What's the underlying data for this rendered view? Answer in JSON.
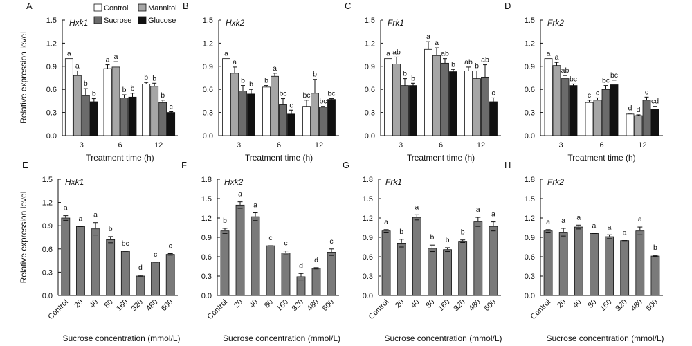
{
  "figure": {
    "legend": [
      {
        "name": "Control",
        "color": "#ffffff"
      },
      {
        "name": "Mannitol",
        "color": "#a6a6a6"
      },
      {
        "name": "Sucrose",
        "color": "#6b6b6b"
      },
      {
        "name": "Glucose",
        "color": "#111111"
      }
    ]
  },
  "chart_data": [
    {
      "panel": "A",
      "gene": "Hxk1",
      "type": "bar",
      "ylabel": "Relative expression level",
      "xlabel": "Treatment time (h)",
      "ylim": [
        0,
        1.5
      ],
      "yticks": [
        "0.0",
        "0.3",
        "0.6",
        "0.9",
        "1.2",
        "1.5"
      ],
      "categories": [
        "3",
        "6",
        "12"
      ],
      "series": [
        {
          "name": "Control",
          "values": [
            1.0,
            0.87,
            0.67
          ],
          "errors": [
            0.0,
            0.05,
            0.02
          ],
          "letters": [
            "a",
            "a",
            "b"
          ]
        },
        {
          "name": "Mannitol",
          "values": [
            0.78,
            0.89,
            0.64
          ],
          "errors": [
            0.06,
            0.07,
            0.04
          ],
          "letters": [
            "a",
            "a",
            "b"
          ]
        },
        {
          "name": "Sucrose",
          "values": [
            0.52,
            0.49,
            0.43
          ],
          "errors": [
            0.09,
            0.04,
            0.03
          ],
          "letters": [
            "b",
            "b",
            "b"
          ]
        },
        {
          "name": "Glucose",
          "values": [
            0.44,
            0.5,
            0.3
          ],
          "errors": [
            0.04,
            0.05,
            0.01
          ],
          "letters": [
            "b",
            "b",
            "c"
          ]
        }
      ]
    },
    {
      "panel": "B",
      "gene": "Hxk2",
      "type": "bar",
      "ylabel": "",
      "xlabel": "Treatment time (h)",
      "ylim": [
        0,
        1.5
      ],
      "yticks": [
        "0.0",
        "0.3",
        "0.6",
        "0.9",
        "1.2",
        "1.5"
      ],
      "categories": [
        "3",
        "6",
        "12"
      ],
      "series": [
        {
          "name": "Control",
          "values": [
            1.0,
            0.63,
            0.38
          ],
          "errors": [
            0.0,
            0.02,
            0.08
          ],
          "letters": [
            "a",
            "b",
            "bc"
          ]
        },
        {
          "name": "Mannitol",
          "values": [
            0.81,
            0.77,
            0.55
          ],
          "errors": [
            0.08,
            0.04,
            0.18
          ],
          "letters": [
            "a",
            "a",
            "b"
          ]
        },
        {
          "name": "Sucrose",
          "values": [
            0.58,
            0.4,
            0.37
          ],
          "errors": [
            0.07,
            0.08,
            0.01
          ],
          "letters": [
            "b",
            "bc",
            "bc"
          ]
        },
        {
          "name": "Glucose",
          "values": [
            0.54,
            0.28,
            0.47
          ],
          "errors": [
            0.06,
            0.05,
            0.01
          ],
          "letters": [
            "b",
            "c",
            "bc"
          ]
        }
      ]
    },
    {
      "panel": "C",
      "gene": "Frk1",
      "type": "bar",
      "ylabel": "",
      "xlabel": "Treatment time (h)",
      "ylim": [
        0,
        1.5
      ],
      "yticks": [
        "0.0",
        "0.3",
        "0.6",
        "0.9",
        "1.2",
        "1.5"
      ],
      "categories": [
        "3",
        "6",
        "12"
      ],
      "series": [
        {
          "name": "Control",
          "values": [
            1.0,
            1.12,
            0.84
          ],
          "errors": [
            0.0,
            0.1,
            0.05
          ],
          "letters": [
            "a",
            "a",
            "ab"
          ]
        },
        {
          "name": "Mannitol",
          "values": [
            0.93,
            1.04,
            0.74
          ],
          "errors": [
            0.09,
            0.1,
            0.1
          ],
          "letters": [
            "ab",
            "a",
            "b"
          ]
        },
        {
          "name": "Sucrose",
          "values": [
            0.65,
            0.94,
            0.76
          ],
          "errors": [
            0.09,
            0.06,
            0.16
          ],
          "letters": [
            "b",
            "ab",
            "ab"
          ]
        },
        {
          "name": "Glucose",
          "values": [
            0.65,
            0.83,
            0.44
          ],
          "errors": [
            0.03,
            0.03,
            0.05
          ],
          "letters": [
            "b",
            "b",
            "c"
          ]
        }
      ]
    },
    {
      "panel": "D",
      "gene": "Frk2",
      "type": "bar",
      "ylabel": "",
      "xlabel": "Treatment time (h)",
      "ylim": [
        0,
        1.5
      ],
      "yticks": [
        "0.0",
        "0.3",
        "0.6",
        "0.9",
        "1.2",
        "1.5"
      ],
      "categories": [
        "3",
        "6",
        "12"
      ],
      "series": [
        {
          "name": "Control",
          "values": [
            1.0,
            0.43,
            0.28
          ],
          "errors": [
            0.0,
            0.03,
            0.01
          ],
          "letters": [
            "a",
            "c",
            "d"
          ]
        },
        {
          "name": "Mannitol",
          "values": [
            0.91,
            0.46,
            0.26
          ],
          "errors": [
            0.04,
            0.03,
            0.01
          ],
          "letters": [
            "a",
            "c",
            "d"
          ]
        },
        {
          "name": "Sucrose",
          "values": [
            0.74,
            0.6,
            0.46
          ],
          "errors": [
            0.04,
            0.05,
            0.04
          ],
          "letters": [
            "ab",
            "bc",
            "c"
          ]
        },
        {
          "name": "Glucose",
          "values": [
            0.65,
            0.66,
            0.34
          ],
          "errors": [
            0.02,
            0.06,
            0.04
          ],
          "letters": [
            "bc",
            "bc",
            "cd"
          ]
        }
      ]
    },
    {
      "panel": "E",
      "gene": "Hxk1",
      "type": "bar",
      "ylabel": "Relative expression level",
      "xlabel": "Sucrose concentration (mmol/L)",
      "ylim": [
        0,
        1.5
      ],
      "yticks": [
        "0.0",
        "0.3",
        "0.6",
        "0.9",
        "1.2",
        "1.5"
      ],
      "categories": [
        "Control",
        "20",
        "40",
        "80",
        "160",
        "320",
        "480",
        "600"
      ],
      "values": [
        1.0,
        0.89,
        0.86,
        0.72,
        0.57,
        0.25,
        0.43,
        0.53
      ],
      "errors": [
        0.03,
        0.0,
        0.08,
        0.04,
        0.0,
        0.01,
        0.0,
        0.01
      ],
      "letters": [
        "a",
        "a",
        "a",
        "b",
        "bc",
        "d",
        "c",
        "c"
      ]
    },
    {
      "panel": "F",
      "gene": "Hxk2",
      "type": "bar",
      "ylabel": "",
      "xlabel": "Sucrose concentration (mmol/L)",
      "ylim": [
        0,
        1.8
      ],
      "yticks": [
        "0.0",
        "0.3",
        "0.6",
        "0.9",
        "1.2",
        "1.5",
        "1.8"
      ],
      "categories": [
        "Control",
        "20",
        "40",
        "80",
        "160",
        "320",
        "480",
        "600"
      ],
      "values": [
        1.0,
        1.4,
        1.22,
        0.77,
        0.66,
        0.29,
        0.42,
        0.67
      ],
      "errors": [
        0.04,
        0.05,
        0.06,
        0.0,
        0.03,
        0.05,
        0.01,
        0.05
      ],
      "letters": [
        "b",
        "a",
        "a",
        "c",
        "c",
        "d",
        "d",
        "c"
      ]
    },
    {
      "panel": "G",
      "gene": "Frk1",
      "type": "bar",
      "ylabel": "",
      "xlabel": "Sucrose concentration (mmol/L)",
      "ylim": [
        0,
        1.8
      ],
      "yticks": [
        "0.0",
        "0.3",
        "0.6",
        "0.9",
        "1.2",
        "1.5",
        "1.8"
      ],
      "categories": [
        "Control",
        "20",
        "40",
        "80",
        "160",
        "320",
        "480",
        "600"
      ],
      "values": [
        1.0,
        0.81,
        1.21,
        0.73,
        0.71,
        0.84,
        1.14,
        1.07
      ],
      "errors": [
        0.02,
        0.06,
        0.04,
        0.05,
        0.03,
        0.02,
        0.07,
        0.07
      ],
      "letters": [
        "a",
        "b",
        "a",
        "b",
        "b",
        "b",
        "a",
        "a"
      ]
    },
    {
      "panel": "H",
      "gene": "Frk2",
      "type": "bar",
      "ylabel": "",
      "xlabel": "Sucrose concentration (mmol/L)",
      "ylim": [
        0,
        1.8
      ],
      "yticks": [
        "0.0",
        "0.3",
        "0.6",
        "0.9",
        "1.2",
        "1.5",
        "1.8"
      ],
      "categories": [
        "Control",
        "20",
        "40",
        "80",
        "160",
        "320",
        "480",
        "600"
      ],
      "values": [
        1.0,
        0.98,
        1.06,
        0.96,
        0.91,
        0.85,
        1.0,
        0.61
      ],
      "errors": [
        0.02,
        0.06,
        0.03,
        0.0,
        0.03,
        0.0,
        0.06,
        0.01
      ],
      "letters": [
        "a",
        "a",
        "a",
        "a",
        "a",
        "a",
        "a",
        "b"
      ]
    }
  ]
}
